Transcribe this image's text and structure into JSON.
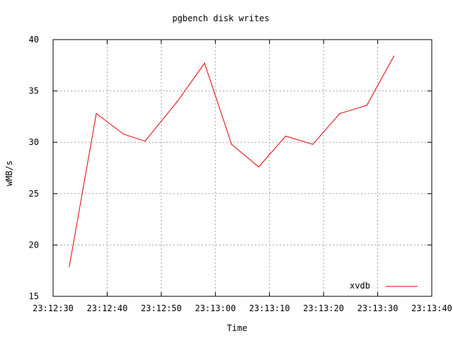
{
  "chart_data": {
    "type": "line",
    "title": "pgbench disk writes",
    "xlabel": "Time",
    "ylabel": "wMB/s",
    "xlim": [
      "23:12:30",
      "23:13:40"
    ],
    "ylim": [
      15,
      40
    ],
    "x_ticks": [
      "23:12:30",
      "23:12:40",
      "23:12:50",
      "23:13:00",
      "23:13:10",
      "23:13:20",
      "23:13:30",
      "23:13:40"
    ],
    "y_ticks": [
      "15",
      "20",
      "25",
      "30",
      "35",
      "40"
    ],
    "grid": true,
    "legend_position": "bottom-right",
    "series": [
      {
        "name": "xvdb",
        "color": "#e00000",
        "x": [
          "23:12:33",
          "23:12:38",
          "23:12:43",
          "23:12:47",
          "23:12:53",
          "23:12:58",
          "23:13:03",
          "23:13:08",
          "23:13:13",
          "23:13:18",
          "23:13:23",
          "23:13:28",
          "23:13:33"
        ],
        "values": [
          17.9,
          32.8,
          30.8,
          30.1,
          34.0,
          37.7,
          29.8,
          27.6,
          30.6,
          29.8,
          32.8,
          33.6,
          38.4
        ]
      }
    ]
  }
}
